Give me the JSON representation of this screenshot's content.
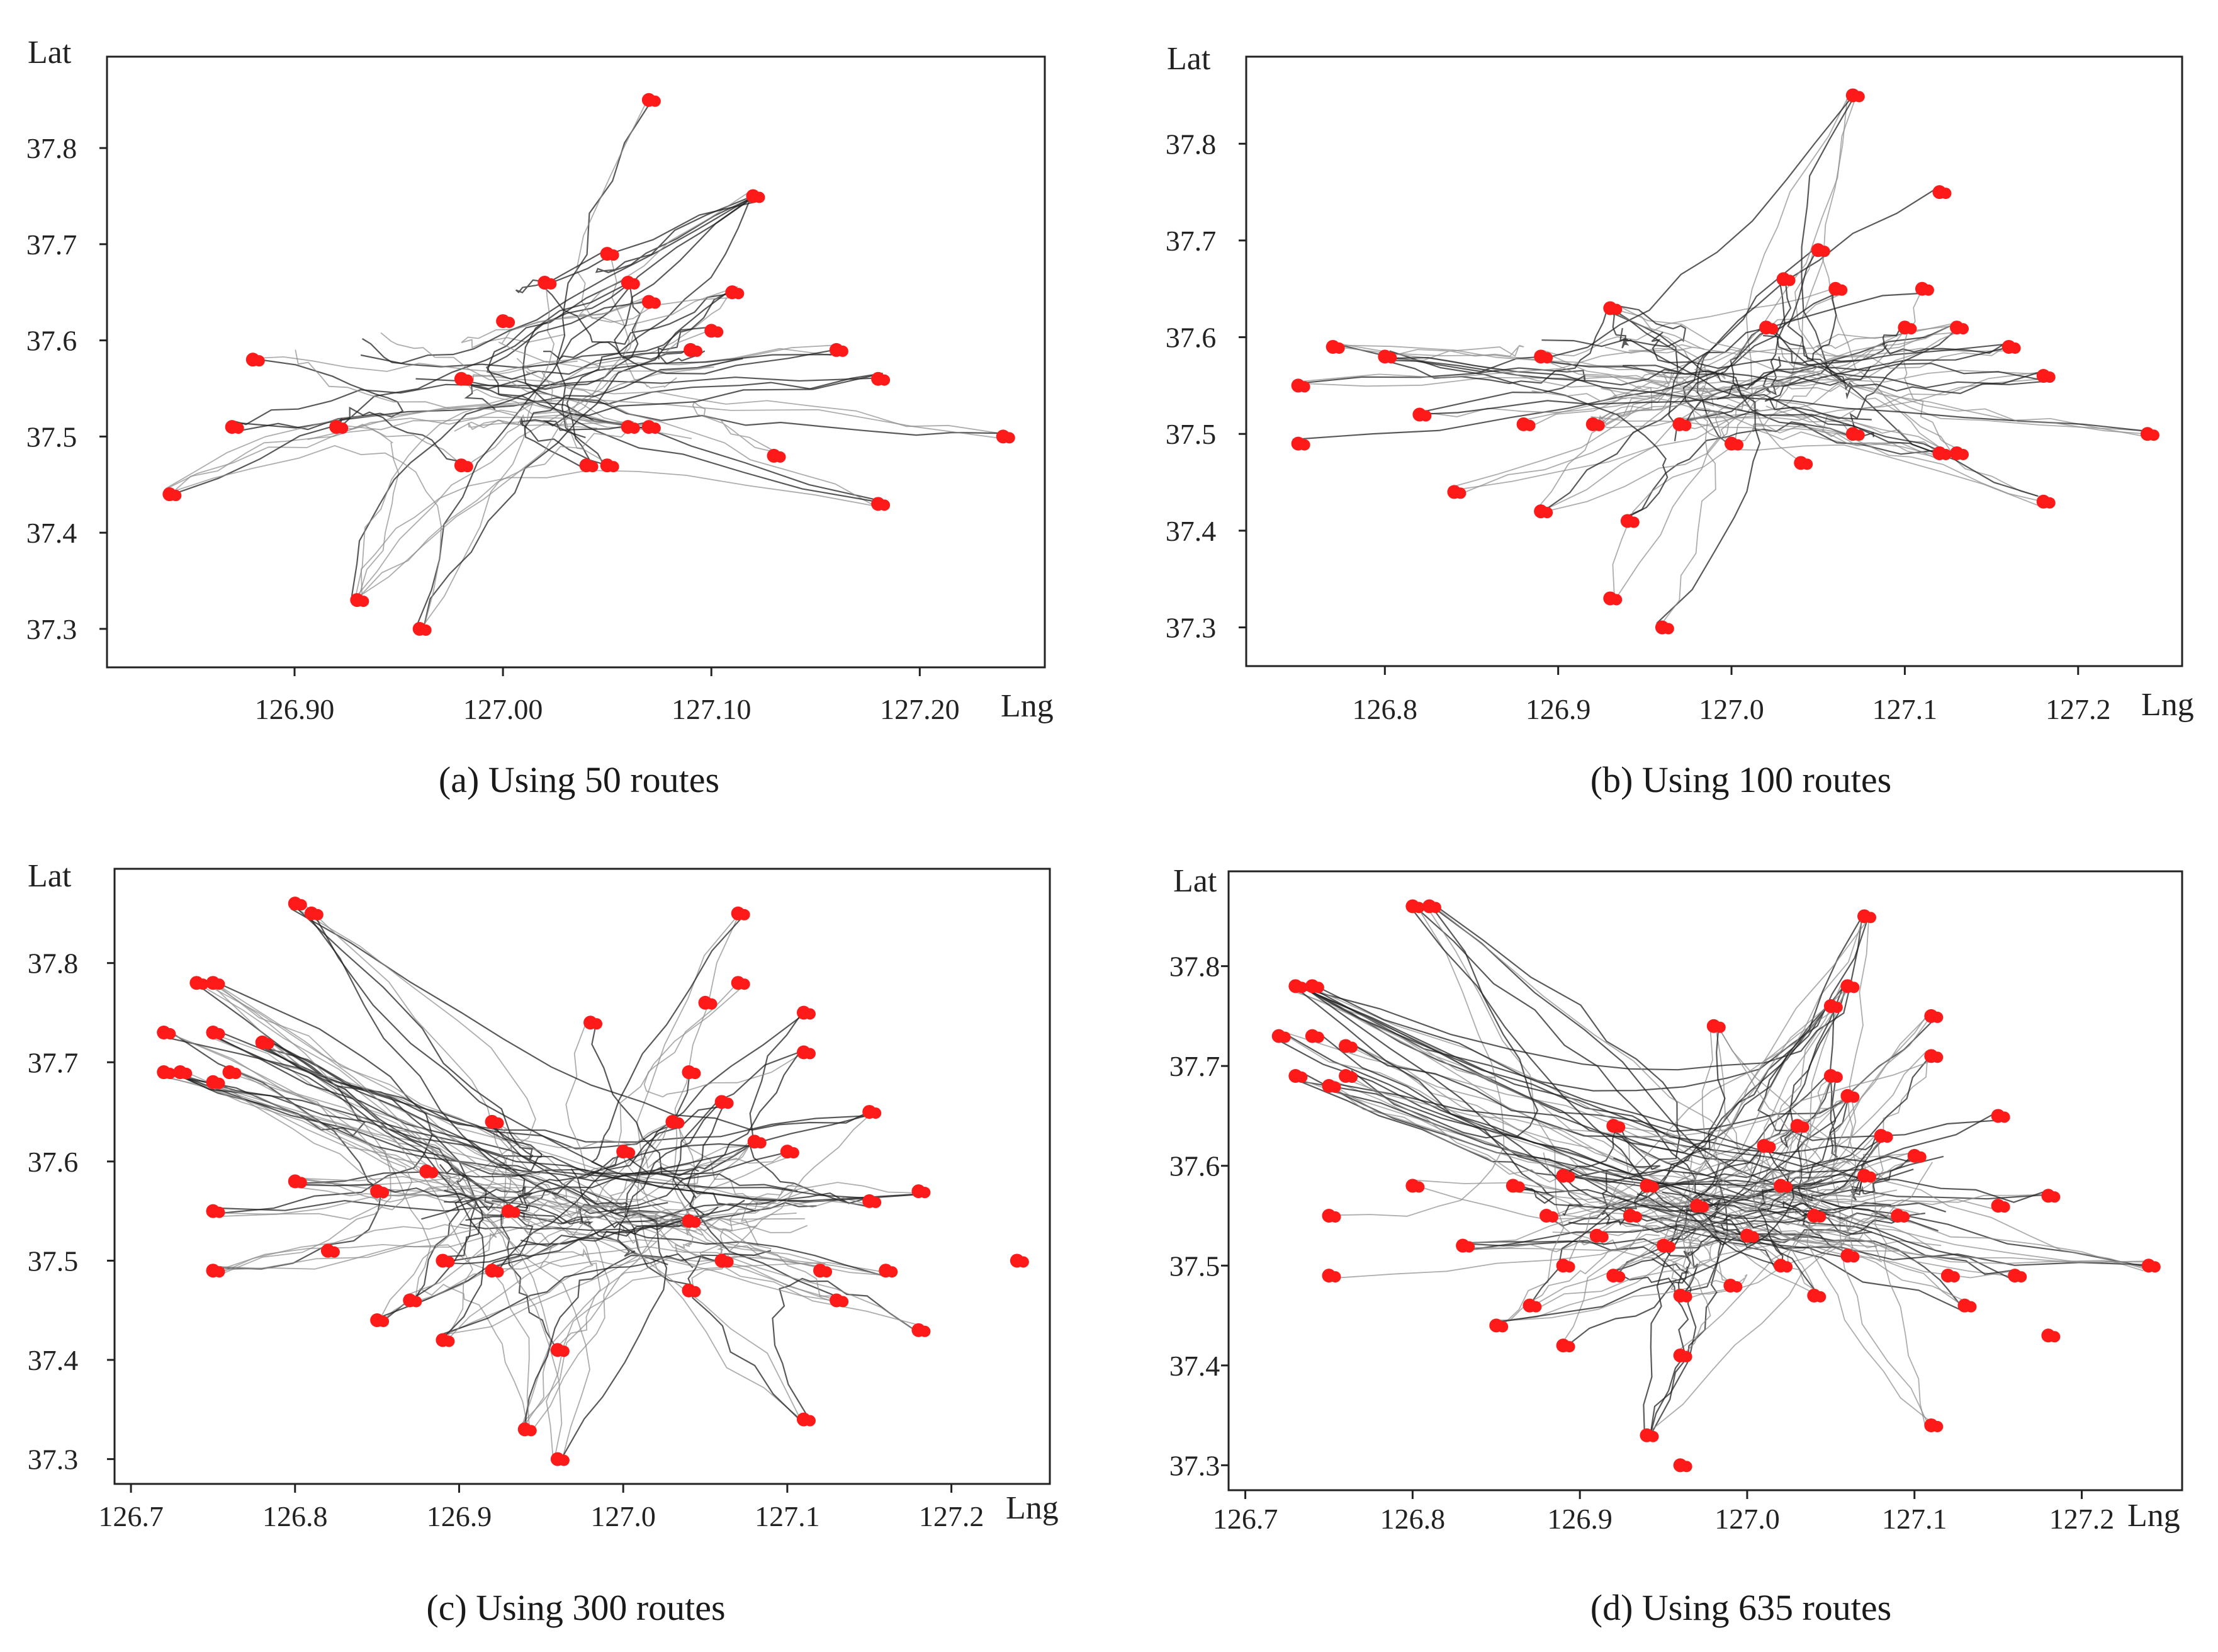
{
  "chart_data": [
    {
      "type": "scatter",
      "title": "",
      "caption": "(a) Using 50 routes",
      "xlabel": "Lng",
      "ylabel": "Lat",
      "xlim": [
        126.81,
        127.26
      ],
      "ylim": [
        37.26,
        37.895
      ],
      "xticks": [
        126.9,
        127.0,
        127.1,
        127.2
      ],
      "xtick_labels": [
        "126.90",
        "127.00",
        "127.10",
        "127.20"
      ],
      "yticks": [
        37.3,
        37.4,
        37.5,
        37.6,
        37.7,
        37.8
      ],
      "ytick_labels": [
        "37.3",
        "37.4",
        "37.5",
        "37.6",
        "37.7",
        "37.8"
      ],
      "series": [
        {
          "name": "route stops",
          "color": "#ff1a1a",
          "marker": "circle",
          "points": [
            [
              127.07,
              37.85
            ],
            [
              127.12,
              37.75
            ],
            [
              127.05,
              37.69
            ],
            [
              127.02,
              37.66
            ],
            [
              127.06,
              37.66
            ],
            [
              127.11,
              37.65
            ],
            [
              127.07,
              37.64
            ],
            [
              127.0,
              37.62
            ],
            [
              127.1,
              37.61
            ],
            [
              127.09,
              37.59
            ],
            [
              127.16,
              37.59
            ],
            [
              126.88,
              37.58
            ],
            [
              126.98,
              37.56
            ],
            [
              127.18,
              37.56
            ],
            [
              126.87,
              37.51
            ],
            [
              126.92,
              37.51
            ],
            [
              127.06,
              37.51
            ],
            [
              127.07,
              37.51
            ],
            [
              127.13,
              37.48
            ],
            [
              126.98,
              37.47
            ],
            [
              127.05,
              37.47
            ],
            [
              127.04,
              37.47
            ],
            [
              126.84,
              37.44
            ],
            [
              127.18,
              37.43
            ],
            [
              127.24,
              37.5
            ],
            [
              126.93,
              37.33
            ],
            [
              126.96,
              37.3
            ]
          ]
        }
      ],
      "route_color": "#1f1f1f"
    },
    {
      "type": "scatter",
      "title": "",
      "caption": "(b) Using 100 routes",
      "xlabel": "Lng",
      "ylabel": "Lat",
      "xlim": [
        126.72,
        127.26
      ],
      "ylim": [
        37.26,
        37.89
      ],
      "xticks": [
        126.8,
        126.9,
        127.0,
        127.1,
        127.2
      ],
      "xtick_labels": [
        "126.8",
        "126.9",
        "127.0",
        "127.1",
        "127.2"
      ],
      "yticks": [
        37.3,
        37.4,
        37.5,
        37.6,
        37.7,
        37.8
      ],
      "ytick_labels": [
        "37.3",
        "37.4",
        "37.5",
        "37.6",
        "37.7",
        "37.8"
      ],
      "series": [
        {
          "name": "route stops",
          "color": "#ff1a1a",
          "marker": "circle",
          "points": [
            [
              127.07,
              37.85
            ],
            [
              127.12,
              37.75
            ],
            [
              127.05,
              37.69
            ],
            [
              127.03,
              37.66
            ],
            [
              127.06,
              37.65
            ],
            [
              127.11,
              37.65
            ],
            [
              126.93,
              37.63
            ],
            [
              127.1,
              37.61
            ],
            [
              127.13,
              37.61
            ],
            [
              127.02,
              37.61
            ],
            [
              127.16,
              37.59
            ],
            [
              126.77,
              37.59
            ],
            [
              126.8,
              37.58
            ],
            [
              126.89,
              37.58
            ],
            [
              126.75,
              37.55
            ],
            [
              127.18,
              37.56
            ],
            [
              126.82,
              37.52
            ],
            [
              126.88,
              37.51
            ],
            [
              126.92,
              37.51
            ],
            [
              127.07,
              37.5
            ],
            [
              127.12,
              37.48
            ],
            [
              127.13,
              37.48
            ],
            [
              126.75,
              37.49
            ],
            [
              127.04,
              37.47
            ],
            [
              126.84,
              37.44
            ],
            [
              127.18,
              37.43
            ],
            [
              127.24,
              37.5
            ],
            [
              126.89,
              37.42
            ],
            [
              126.94,
              37.41
            ],
            [
              126.93,
              37.33
            ],
            [
              126.96,
              37.3
            ],
            [
              127.0,
              37.49
            ],
            [
              126.97,
              37.51
            ]
          ]
        }
      ],
      "route_color": "#1f1f1f"
    },
    {
      "type": "scatter",
      "title": "",
      "caption": "(c) Using 300 routes",
      "xlabel": "Lng",
      "ylabel": "Lat",
      "xlim": [
        126.69,
        127.26
      ],
      "ylim": [
        37.275,
        37.895
      ],
      "xticks": [
        126.7,
        126.8,
        126.9,
        127.0,
        127.1,
        127.2
      ],
      "xtick_labels": [
        "126.7",
        "126.8",
        "126.9",
        "127.0",
        "127.1",
        "127.2"
      ],
      "yticks": [
        37.3,
        37.4,
        37.5,
        37.6,
        37.7,
        37.8
      ],
      "ytick_labels": [
        "37.3",
        "37.4",
        "37.5",
        "37.6",
        "37.7",
        "37.8"
      ],
      "series": [
        {
          "name": "route stops",
          "color": "#ff1a1a",
          "marker": "circle",
          "points": [
            [
              126.8,
              37.86
            ],
            [
              126.81,
              37.85
            ],
            [
              127.07,
              37.85
            ],
            [
              126.74,
              37.78
            ],
            [
              126.75,
              37.78
            ],
            [
              127.07,
              37.78
            ],
            [
              127.11,
              37.75
            ],
            [
              126.98,
              37.74
            ],
            [
              127.05,
              37.76
            ],
            [
              126.72,
              37.73
            ],
            [
              126.75,
              37.73
            ],
            [
              126.78,
              37.72
            ],
            [
              127.11,
              37.71
            ],
            [
              126.72,
              37.69
            ],
            [
              126.73,
              37.69
            ],
            [
              126.75,
              37.68
            ],
            [
              126.76,
              37.69
            ],
            [
              127.04,
              37.69
            ],
            [
              127.06,
              37.66
            ],
            [
              127.03,
              37.64
            ],
            [
              127.15,
              37.65
            ],
            [
              126.92,
              37.64
            ],
            [
              127.08,
              37.62
            ],
            [
              127.1,
              37.61
            ],
            [
              127.0,
              37.61
            ],
            [
              126.88,
              37.59
            ],
            [
              126.8,
              37.58
            ],
            [
              126.85,
              37.57
            ],
            [
              126.75,
              37.55
            ],
            [
              127.15,
              37.56
            ],
            [
              127.18,
              37.57
            ],
            [
              126.93,
              37.55
            ],
            [
              127.04,
              37.54
            ],
            [
              126.82,
              37.51
            ],
            [
              126.89,
              37.5
            ],
            [
              126.92,
              37.49
            ],
            [
              127.06,
              37.5
            ],
            [
              127.12,
              37.49
            ],
            [
              127.16,
              37.49
            ],
            [
              126.75,
              37.49
            ],
            [
              126.87,
              37.46
            ],
            [
              127.04,
              37.47
            ],
            [
              127.13,
              37.46
            ],
            [
              126.85,
              37.44
            ],
            [
              126.89,
              37.42
            ],
            [
              127.18,
              37.43
            ],
            [
              127.24,
              37.5
            ],
            [
              126.96,
              37.41
            ],
            [
              127.11,
              37.34
            ],
            [
              126.94,
              37.33
            ],
            [
              126.96,
              37.3
            ]
          ]
        }
      ],
      "route_color": "#1f1f1f"
    },
    {
      "type": "scatter",
      "title": "",
      "caption": "(d) Using 635 routes",
      "xlabel": "Lng",
      "ylabel": "Lat",
      "xlim": [
        126.69,
        127.26
      ],
      "ylim": [
        37.275,
        37.895
      ],
      "xticks": [
        126.7,
        126.8,
        126.9,
        127.0,
        127.1,
        127.2
      ],
      "xtick_labels": [
        "126.7",
        "126.8",
        "126.9",
        "127.0",
        "127.1",
        "127.2"
      ],
      "yticks": [
        37.3,
        37.4,
        37.5,
        37.6,
        37.7,
        37.8
      ],
      "ytick_labels": [
        "37.3",
        "37.4",
        "37.5",
        "37.6",
        "37.7",
        "37.8"
      ],
      "series": [
        {
          "name": "route stops",
          "color": "#ff1a1a",
          "marker": "circle",
          "points": [
            [
              126.8,
              37.86
            ],
            [
              126.81,
              37.86
            ],
            [
              127.07,
              37.85
            ],
            [
              126.74,
              37.78
            ],
            [
              126.73,
              37.78
            ],
            [
              127.06,
              37.78
            ],
            [
              127.11,
              37.75
            ],
            [
              126.98,
              37.74
            ],
            [
              127.05,
              37.76
            ],
            [
              126.72,
              37.73
            ],
            [
              126.74,
              37.73
            ],
            [
              126.76,
              37.72
            ],
            [
              127.11,
              37.71
            ],
            [
              126.73,
              37.69
            ],
            [
              126.75,
              37.68
            ],
            [
              126.76,
              37.69
            ],
            [
              127.05,
              37.69
            ],
            [
              127.06,
              37.67
            ],
            [
              127.03,
              37.64
            ],
            [
              127.15,
              37.65
            ],
            [
              126.92,
              37.64
            ],
            [
              127.08,
              37.63
            ],
            [
              127.1,
              37.61
            ],
            [
              127.01,
              37.62
            ],
            [
              126.89,
              37.59
            ],
            [
              126.8,
              37.58
            ],
            [
              126.86,
              37.58
            ],
            [
              126.75,
              37.55
            ],
            [
              127.15,
              37.56
            ],
            [
              127.18,
              37.57
            ],
            [
              126.93,
              37.55
            ],
            [
              127.04,
              37.55
            ],
            [
              126.83,
              37.52
            ],
            [
              126.89,
              37.5
            ],
            [
              126.92,
              37.49
            ],
            [
              127.06,
              37.51
            ],
            [
              127.12,
              37.49
            ],
            [
              127.16,
              37.49
            ],
            [
              126.75,
              37.49
            ],
            [
              126.87,
              37.46
            ],
            [
              127.04,
              37.47
            ],
            [
              127.13,
              37.46
            ],
            [
              126.85,
              37.44
            ],
            [
              126.89,
              37.42
            ],
            [
              127.18,
              37.43
            ],
            [
              127.24,
              37.5
            ],
            [
              126.96,
              37.41
            ],
            [
              127.11,
              37.34
            ],
            [
              126.94,
              37.33
            ],
            [
              126.96,
              37.3
            ],
            [
              126.97,
              37.56
            ],
            [
              126.95,
              37.52
            ],
            [
              127.0,
              37.53
            ],
            [
              127.02,
              37.58
            ],
            [
              126.94,
              37.58
            ],
            [
              126.91,
              37.53
            ],
            [
              126.99,
              37.48
            ],
            [
              127.07,
              37.59
            ],
            [
              127.09,
              37.55
            ],
            [
              126.88,
              37.55
            ],
            [
              126.96,
              37.47
            ],
            [
              127.02,
              37.5
            ]
          ]
        }
      ],
      "route_color": "#1f1f1f"
    }
  ]
}
